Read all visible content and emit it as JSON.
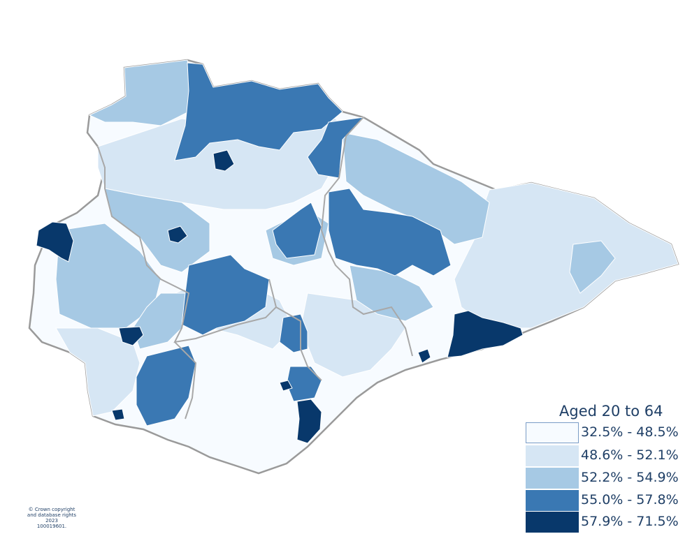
{
  "legend": {
    "title": "Aged 20 to 64",
    "classes": [
      {
        "label": "32.5% - 48.5%",
        "color": "#f7fbff"
      },
      {
        "label": "48.6% - 52.1%",
        "color": "#d6e6f4"
      },
      {
        "label": "52.2% - 54.9%",
        "color": "#a6c9e4"
      },
      {
        "label": "55.0% - 57.8%",
        "color": "#3a78b3"
      },
      {
        "label": "57.9% - 71.5%",
        "color": "#08386b"
      }
    ]
  },
  "copyright": {
    "line1": "© Crown copyright",
    "line2": "and database rights 2023",
    "line3": "100019601."
  },
  "colors": {
    "outer_boundary": "#9a9a9a",
    "district_boundary": "#a8a8a8",
    "ward_boundary": "#ffffff"
  }
}
